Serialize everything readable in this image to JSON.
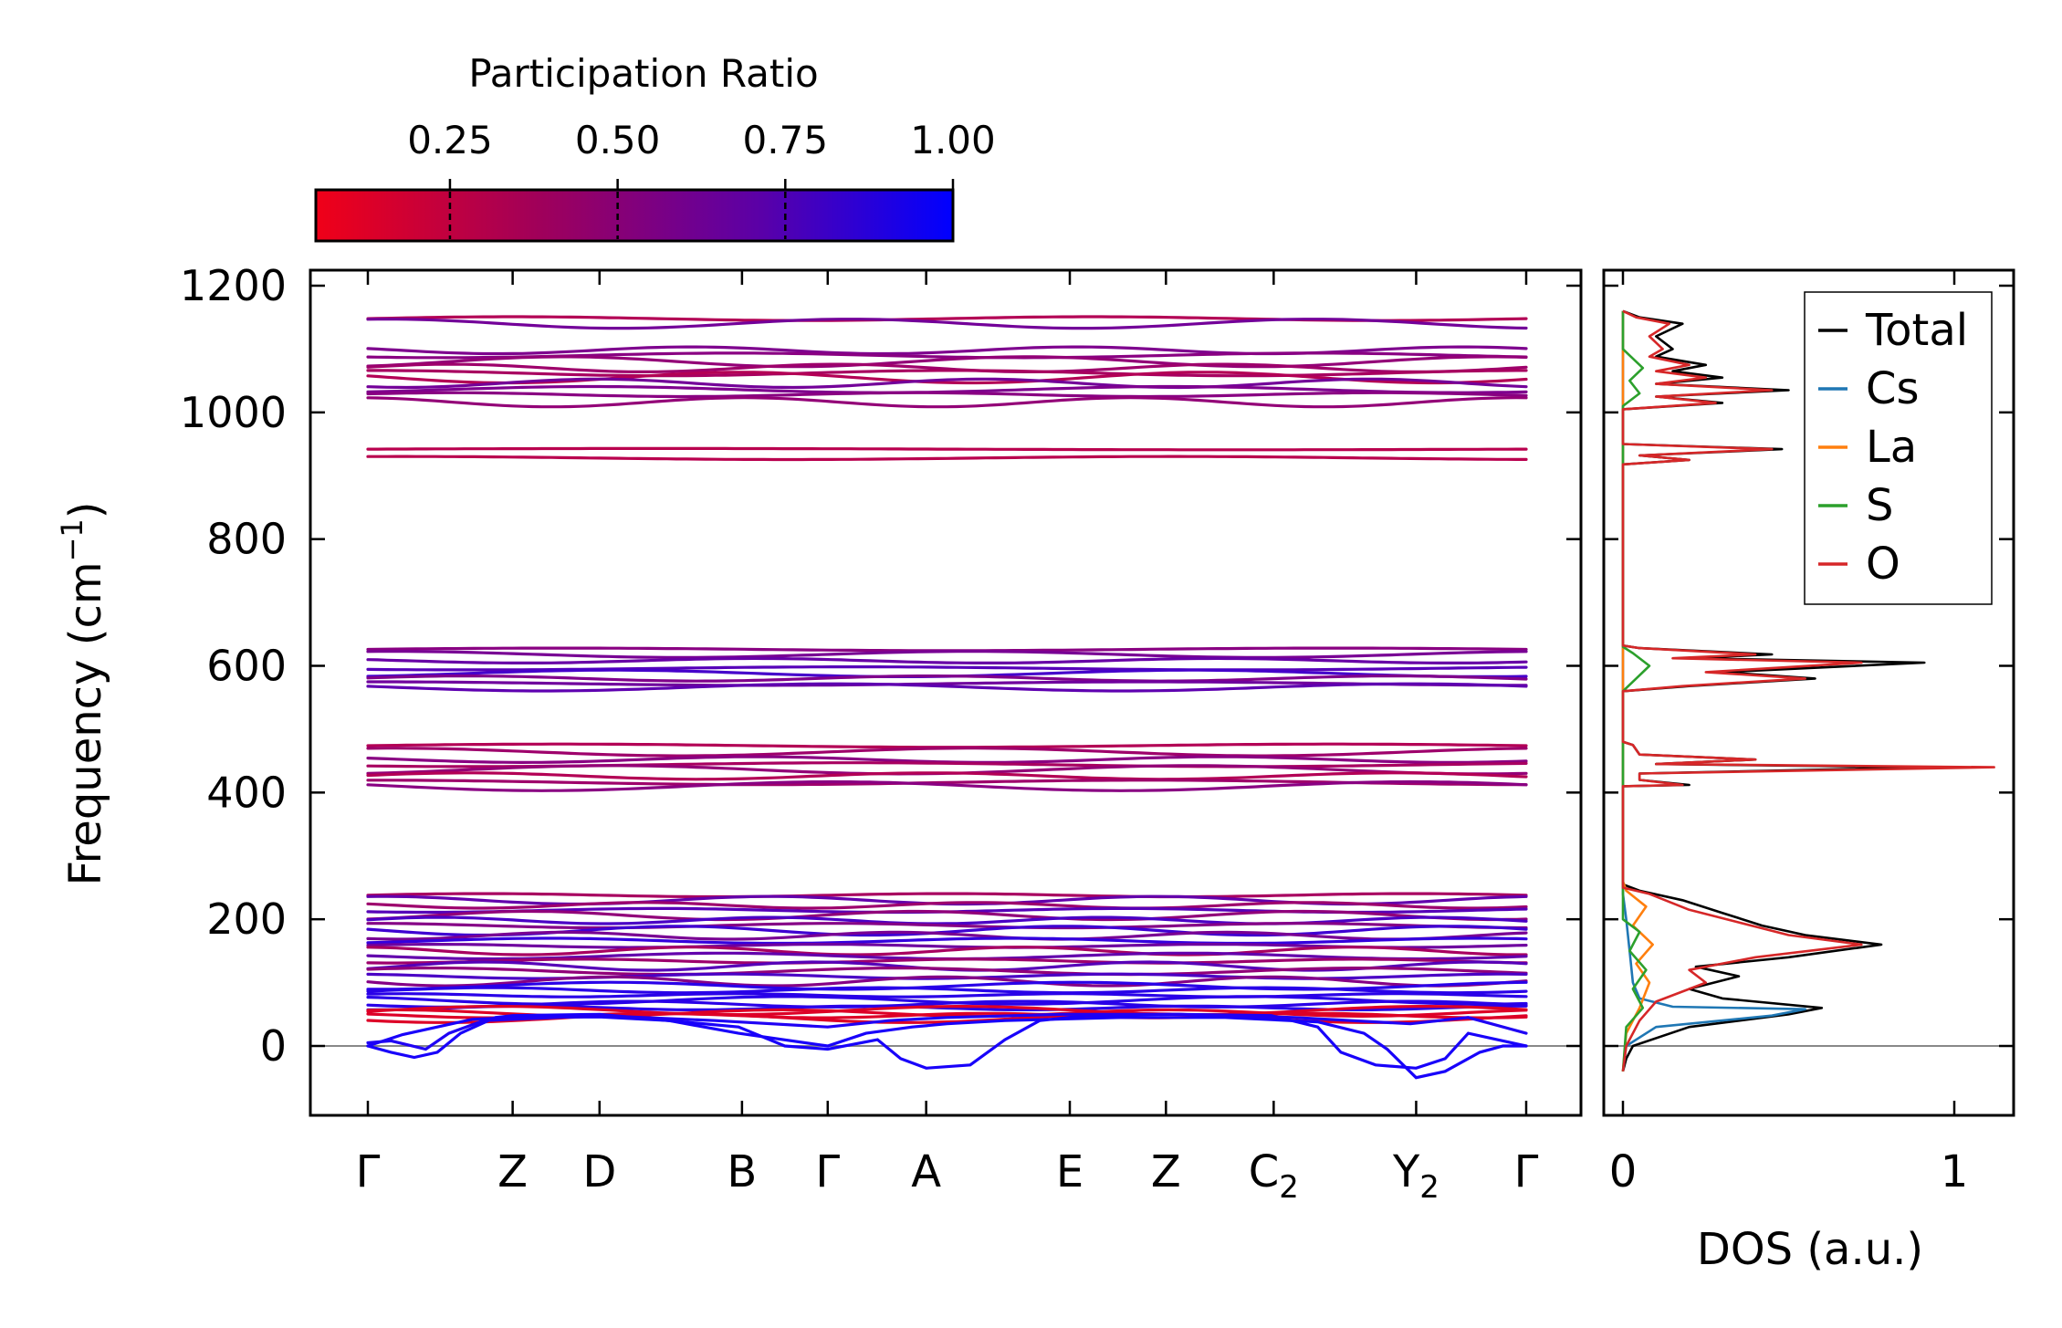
{
  "chart_data": [
    {
      "type": "line",
      "name": "phonon-band-structure",
      "xlabel": "",
      "ylabel_prefix": "Frequency (cm",
      "ylabel_sup": "−1",
      "ylabel_suffix": ")",
      "ylim": [
        -110,
        1220
      ],
      "yticks": [
        0,
        200,
        400,
        600,
        800,
        1000,
        1200
      ],
      "kpoints": [
        {
          "label": "Γ",
          "sub": "",
          "pos": 0.0
        },
        {
          "label": "Z",
          "sub": "",
          "pos": 0.125
        },
        {
          "label": "D",
          "sub": "",
          "pos": 0.2
        },
        {
          "label": "B",
          "sub": "",
          "pos": 0.323
        },
        {
          "label": "Γ",
          "sub": "",
          "pos": 0.397
        },
        {
          "label": "A",
          "sub": "",
          "pos": 0.482
        },
        {
          "label": "E",
          "sub": "",
          "pos": 0.606
        },
        {
          "label": "Z",
          "sub": "",
          "pos": 0.689
        },
        {
          "label": "C",
          "sub": "2",
          "pos": 0.782
        },
        {
          "label": "Y",
          "sub": "2",
          "pos": 0.905
        },
        {
          "label": "Γ",
          "sub": "",
          "pos": 1.0
        }
      ],
      "zero_line": 0,
      "bands_high": [
        1148,
        1140,
        1098,
        1090,
        1080,
        1070,
        1062,
        1055,
        1046,
        1036,
        1028,
        1016
      ],
      "bands_iso": [
        942,
        928
      ],
      "bands_mid": [
        626,
        618,
        608,
        596,
        588,
        580,
        572,
        566
      ],
      "bands_412": [
        474,
        464,
        452,
        444,
        436,
        426,
        416,
        410
      ],
      "bands_low": [
        238,
        230,
        222,
        214,
        206,
        198,
        190,
        182,
        174,
        166,
        158,
        150,
        142,
        134,
        126,
        118,
        110,
        102,
        95,
        88,
        80,
        72,
        66,
        60,
        56,
        52,
        48,
        44
      ],
      "acoustic_dip_min": -50,
      "colorbar": {
        "title": "Participation Ratio",
        "ticks": [
          "0.25",
          "0.50",
          "0.75",
          "1.00"
        ],
        "tick_values": [
          0.25,
          0.5,
          0.75,
          1.0
        ],
        "range": [
          0.05,
          1.0
        ],
        "color_low": "#e8001c",
        "color_high": "#0a00ff"
      }
    },
    {
      "type": "line",
      "name": "density-of-states",
      "xlabel": "DOS (a.u.)",
      "xticks": [
        0,
        1
      ],
      "xlim": [
        -0.05,
        1.18
      ],
      "ylim": [
        -110,
        1220
      ],
      "legend_position": "top-right",
      "series": [
        {
          "name": "Total",
          "color": "#000000",
          "points": [
            [
              0,
              -40
            ],
            [
              0.01,
              -20
            ],
            [
              0.03,
              0
            ],
            [
              0.2,
              30
            ],
            [
              0.5,
              50
            ],
            [
              0.6,
              60
            ],
            [
              0.3,
              75
            ],
            [
              0.2,
              90
            ],
            [
              0.35,
              110
            ],
            [
              0.22,
              125
            ],
            [
              0.5,
              140
            ],
            [
              0.78,
              160
            ],
            [
              0.55,
              175
            ],
            [
              0.42,
              190
            ],
            [
              0.3,
              210
            ],
            [
              0.18,
              230
            ],
            [
              0.05,
              245
            ],
            [
              0,
              255
            ],
            [
              0,
              410
            ],
            [
              0.2,
              412
            ],
            [
              0.05,
              420
            ],
            [
              0.05,
              430
            ],
            [
              0.93,
              440
            ],
            [
              0.1,
              445
            ],
            [
              0.4,
              452
            ],
            [
              0.05,
              460
            ],
            [
              0.03,
              475
            ],
            [
              0,
              480
            ],
            [
              0,
              560
            ],
            [
              0.2,
              568
            ],
            [
              0.58,
              580
            ],
            [
              0.3,
              590
            ],
            [
              0.91,
              605
            ],
            [
              0.2,
              612
            ],
            [
              0.45,
              618
            ],
            [
              0.05,
              628
            ],
            [
              0,
              632
            ],
            [
              0,
              918
            ],
            [
              0.2,
              925
            ],
            [
              0.05,
              932
            ],
            [
              0.48,
              942
            ],
            [
              0,
              950
            ],
            [
              0,
              1005
            ],
            [
              0.3,
              1015
            ],
            [
              0.1,
              1025
            ],
            [
              0.5,
              1035
            ],
            [
              0.1,
              1045
            ],
            [
              0.3,
              1055
            ],
            [
              0.15,
              1065
            ],
            [
              0.25,
              1075
            ],
            [
              0.1,
              1088
            ],
            [
              0.15,
              1100
            ],
            [
              0.1,
              1120
            ],
            [
              0.18,
              1140
            ],
            [
              0.05,
              1150
            ],
            [
              0,
              1160
            ]
          ]
        },
        {
          "name": "Cs",
          "color": "#1f77b4",
          "points": [
            [
              0,
              -40
            ],
            [
              0.01,
              0
            ],
            [
              0.1,
              30
            ],
            [
              0.45,
              48
            ],
            [
              0.55,
              58
            ],
            [
              0.15,
              62
            ],
            [
              0.05,
              75
            ],
            [
              0.03,
              100
            ],
            [
              0.02,
              150
            ],
            [
              0.01,
              200
            ],
            [
              0,
              240
            ],
            [
              0,
              1160
            ]
          ]
        },
        {
          "name": "La",
          "color": "#ff7f0e",
          "points": [
            [
              0,
              -40
            ],
            [
              0.01,
              20
            ],
            [
              0.05,
              60
            ],
            [
              0.08,
              100
            ],
            [
              0.04,
              130
            ],
            [
              0.09,
              160
            ],
            [
              0.03,
              190
            ],
            [
              0.07,
              220
            ],
            [
              0.01,
              245
            ],
            [
              0,
              260
            ],
            [
              0,
              1160
            ]
          ]
        },
        {
          "name": "S",
          "color": "#2ca02c",
          "points": [
            [
              0,
              -40
            ],
            [
              0.01,
              30
            ],
            [
              0.06,
              60
            ],
            [
              0.03,
              90
            ],
            [
              0.07,
              120
            ],
            [
              0.02,
              150
            ],
            [
              0.05,
              180
            ],
            [
              0,
              200
            ],
            [
              0,
              560
            ],
            [
              0.04,
              580
            ],
            [
              0.08,
              600
            ],
            [
              0.03,
              620
            ],
            [
              0,
              630
            ],
            [
              0,
              1010
            ],
            [
              0.05,
              1030
            ],
            [
              0.02,
              1050
            ],
            [
              0.06,
              1070
            ],
            [
              0.02,
              1090
            ],
            [
              0,
              1100
            ],
            [
              0,
              1160
            ]
          ]
        },
        {
          "name": "O",
          "color": "#d62728",
          "points": [
            [
              0,
              -40
            ],
            [
              0.01,
              0
            ],
            [
              0.05,
              40
            ],
            [
              0.1,
              70
            ],
            [
              0.25,
              100
            ],
            [
              0.2,
              120
            ],
            [
              0.4,
              140
            ],
            [
              0.72,
              160
            ],
            [
              0.5,
              175
            ],
            [
              0.35,
              195
            ],
            [
              0.2,
              215
            ],
            [
              0.08,
              240
            ],
            [
              0,
              250
            ],
            [
              0,
              410
            ],
            [
              0.18,
              412
            ],
            [
              0.05,
              420
            ],
            [
              0.05,
              430
            ],
            [
              1.12,
              440
            ],
            [
              0.1,
              445
            ],
            [
              0.4,
              452
            ],
            [
              0.05,
              460
            ],
            [
              0.03,
              475
            ],
            [
              0,
              480
            ],
            [
              0,
              560
            ],
            [
              0.18,
              568
            ],
            [
              0.55,
              580
            ],
            [
              0.25,
              590
            ],
            [
              0.72,
              605
            ],
            [
              0.15,
              612
            ],
            [
              0.4,
              618
            ],
            [
              0.05,
              628
            ],
            [
              0,
              632
            ],
            [
              0,
              918
            ],
            [
              0.2,
              925
            ],
            [
              0.05,
              932
            ],
            [
              0.45,
              942
            ],
            [
              0,
              950
            ],
            [
              0,
              1005
            ],
            [
              0.28,
              1015
            ],
            [
              0.1,
              1025
            ],
            [
              0.45,
              1035
            ],
            [
              0.1,
              1045
            ],
            [
              0.25,
              1055
            ],
            [
              0.1,
              1065
            ],
            [
              0.2,
              1075
            ],
            [
              0.08,
              1088
            ],
            [
              0.12,
              1100
            ],
            [
              0.08,
              1120
            ],
            [
              0.14,
              1140
            ],
            [
              0.04,
              1150
            ],
            [
              0,
              1160
            ]
          ]
        }
      ]
    }
  ]
}
